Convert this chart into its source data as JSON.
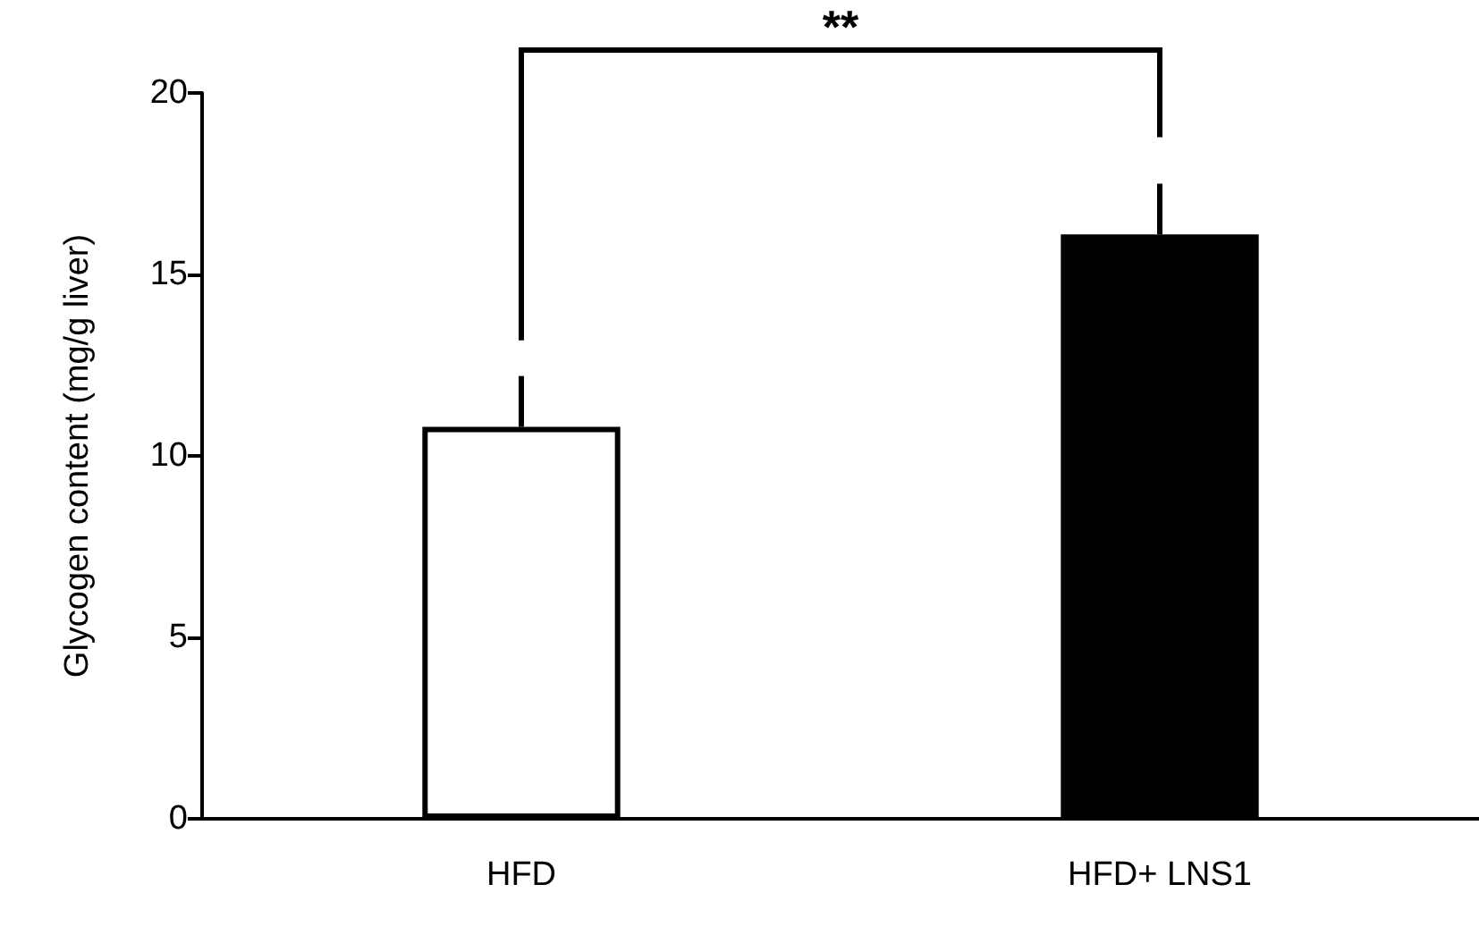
{
  "chart_data": {
    "type": "bar",
    "ylabel": "Glycogen content (mg/g liver)",
    "categories": [
      "HFD",
      "HFD+ LNS1"
    ],
    "values": [
      10.8,
      16.1
    ],
    "errors": [
      1.4,
      1.4
    ],
    "colors": [
      "#ffffff",
      "#000000"
    ],
    "ylim": [
      0,
      20
    ],
    "yticks": [
      0,
      5,
      10,
      15,
      20
    ],
    "grid": false,
    "annotations": [
      "**"
    ]
  }
}
